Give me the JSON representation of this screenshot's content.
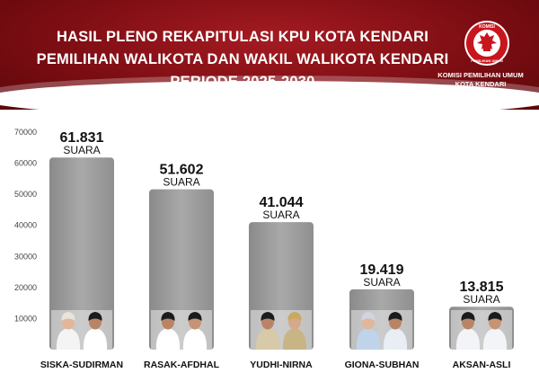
{
  "header": {
    "title_line1": "HASIL PLENO REKAPITULASI KPU KOTA KENDARI",
    "title_line2": "PEMILIHAN WALIKOTA DAN WAKIL WALIKOTA KENDARI",
    "title_line3": "PERIODE 2025-2030",
    "org_line1": "KOMISI PEMILIHAN UMUM",
    "org_line2": "KOTA KENDARI",
    "logo_top_text": "KOMISI",
    "logo_bottom_text": "PEMILIHAN UMUM"
  },
  "colors": {
    "header_red": "#8e1118",
    "bar_gray": "#9a9a9a"
  },
  "chart_data": {
    "type": "bar",
    "categories": [
      "SISKA-SUDIRMAN",
      "RASAK-AFDHAL",
      "YUDHI-NIRNA",
      "GIONA-SUBHAN",
      "AKSAN-ASLI"
    ],
    "values": [
      61831,
      51602,
      41044,
      19419,
      13815
    ],
    "value_labels": [
      "61.831",
      "51.602",
      "41.044",
      "19.419",
      "13.815"
    ],
    "unit_label": "SUARA",
    "y_ticks": [
      10000,
      20000,
      30000,
      40000,
      50000,
      60000,
      70000
    ],
    "ylim": [
      0,
      70000
    ],
    "grid": false,
    "candidate_photos": [
      "pair",
      "pair",
      "pair",
      "pair",
      "pair"
    ]
  }
}
